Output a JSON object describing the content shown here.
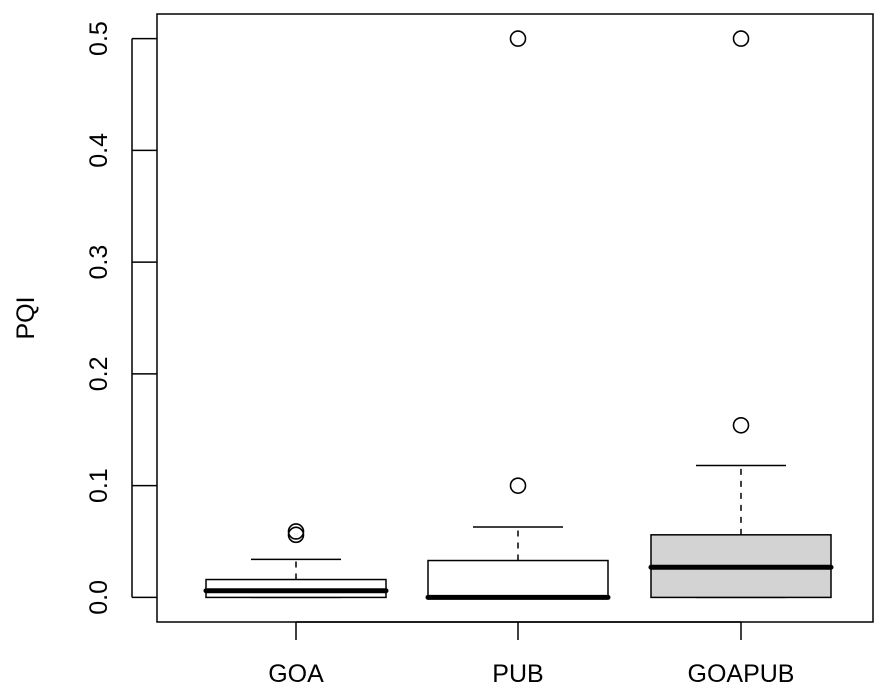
{
  "chart_data": {
    "type": "box",
    "title": "",
    "xlabel": "",
    "ylabel": "PQI",
    "ylim": [
      -0.022,
      0.522
    ],
    "yticks": [
      0.0,
      0.1,
      0.2,
      0.3,
      0.4,
      0.5
    ],
    "ytick_labels": [
      "0.0",
      "0.1",
      "0.2",
      "0.3",
      "0.4",
      "0.5"
    ],
    "categories": [
      "GOA",
      "PUB",
      "GOAPUB"
    ],
    "boxes": [
      {
        "category": "GOA",
        "whisker_low": 0.0,
        "q1": 0.0,
        "median": 0.006,
        "q3": 0.016,
        "whisker_high": 0.034,
        "outliers": [
          0.056,
          0.059
        ],
        "fill": "#ffffff"
      },
      {
        "category": "PUB",
        "whisker_low": 0.0,
        "q1": 0.0,
        "median": 0.0,
        "q3": 0.033,
        "whisker_high": 0.063,
        "outliers": [
          0.1,
          0.5
        ],
        "fill": "#ffffff"
      },
      {
        "category": "GOAPUB",
        "whisker_low": 0.0,
        "q1": 0.0,
        "median": 0.027,
        "q3": 0.056,
        "whisker_high": 0.118,
        "outliers": [
          0.154,
          0.5
        ],
        "fill": "#d3d3d3"
      }
    ],
    "grid": false,
    "legend": "none"
  }
}
